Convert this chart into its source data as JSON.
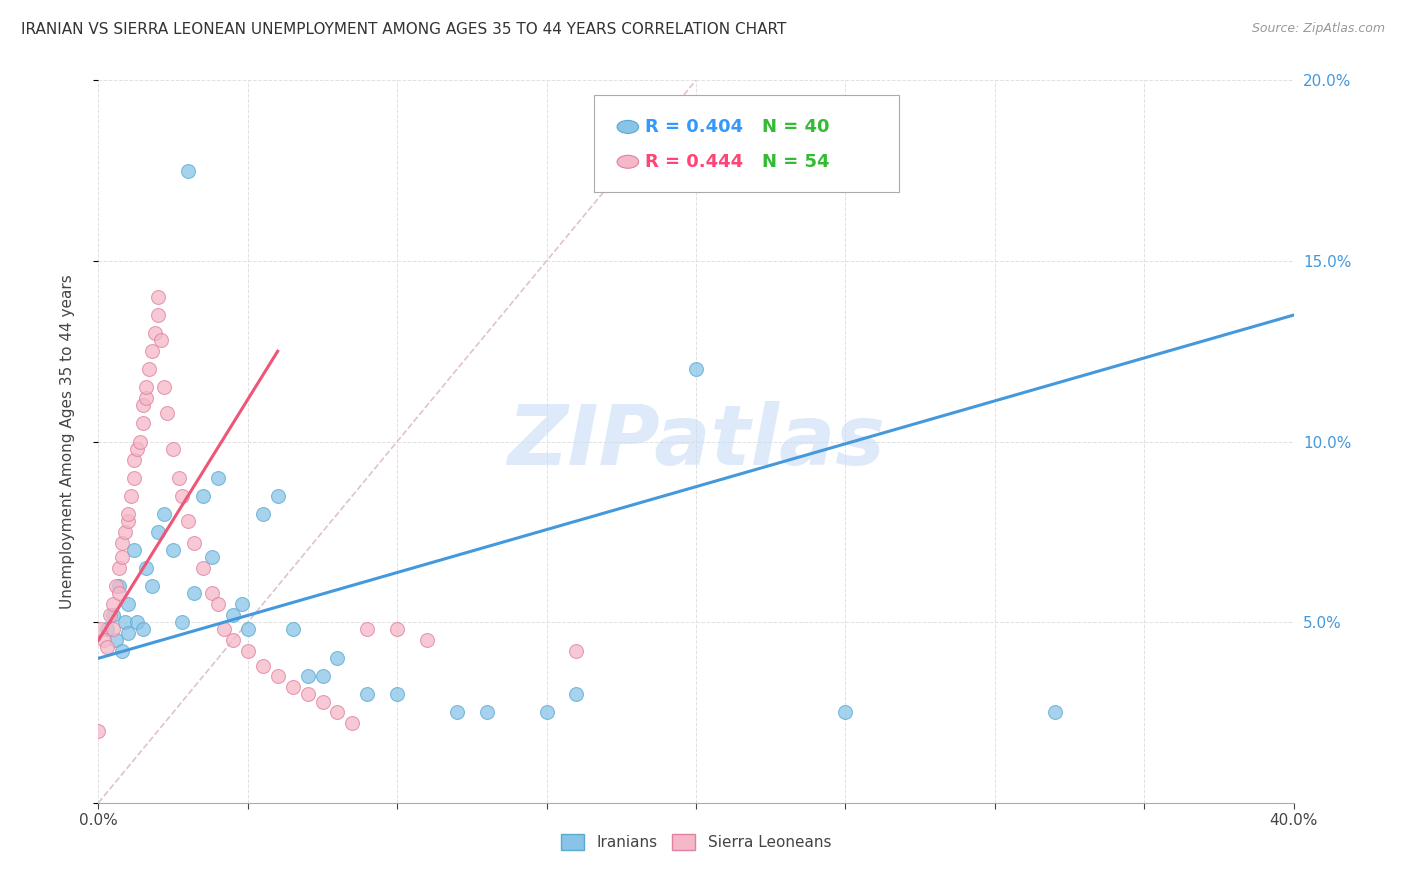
{
  "title": "IRANIAN VS SIERRA LEONEAN UNEMPLOYMENT AMONG AGES 35 TO 44 YEARS CORRELATION CHART",
  "source": "Source: ZipAtlas.com",
  "ylabel": "Unemployment Among Ages 35 to 44 years",
  "xlim": [
    0.0,
    0.4
  ],
  "ylim": [
    0.0,
    0.2
  ],
  "xtick_pos": [
    0.0,
    0.05,
    0.1,
    0.15,
    0.2,
    0.25,
    0.3,
    0.35,
    0.4
  ],
  "xtick_labels": [
    "0.0%",
    "",
    "",
    "",
    "",
    "",
    "",
    "",
    "40.0%"
  ],
  "ytick_pos": [
    0.0,
    0.05,
    0.1,
    0.15,
    0.2
  ],
  "ytick_labels_right": [
    "",
    "5.0%",
    "10.0%",
    "15.0%",
    "20.0%"
  ],
  "iranian_R": 0.404,
  "iranian_N": 40,
  "sierraleonean_R": 0.444,
  "sierraleonean_N": 54,
  "iranian_color": "#89c4e8",
  "iranian_edge": "#5aaad0",
  "sierraleonean_color": "#f5b8c8",
  "sierraleonean_edge": "#e080a0",
  "trendline_iranian_color": "#4499dd",
  "trendline_sierraleonean_color": "#ee5577",
  "diagonal_color": "#ddbbcc",
  "background_color": "#ffffff",
  "watermark_color": "#c8ddf5",
  "legend_R_iranian_color": "#3399ff",
  "legend_N_iranian_color": "#33bb33",
  "legend_R_sl_color": "#ff4477",
  "legend_N_sl_color": "#33bb33",
  "iranian_x": [
    0.003,
    0.005,
    0.006,
    0.007,
    0.008,
    0.009,
    0.01,
    0.01,
    0.012,
    0.013,
    0.015,
    0.016,
    0.018,
    0.02,
    0.022,
    0.025,
    0.028,
    0.03,
    0.032,
    0.035,
    0.038,
    0.04,
    0.045,
    0.048,
    0.05,
    0.055,
    0.06,
    0.065,
    0.07,
    0.075,
    0.08,
    0.09,
    0.1,
    0.12,
    0.13,
    0.15,
    0.16,
    0.2,
    0.25,
    0.32
  ],
  "iranian_y": [
    0.048,
    0.052,
    0.045,
    0.06,
    0.042,
    0.05,
    0.047,
    0.055,
    0.07,
    0.05,
    0.048,
    0.065,
    0.06,
    0.075,
    0.08,
    0.07,
    0.05,
    0.175,
    0.058,
    0.085,
    0.068,
    0.09,
    0.052,
    0.055,
    0.048,
    0.08,
    0.085,
    0.048,
    0.035,
    0.035,
    0.04,
    0.03,
    0.03,
    0.025,
    0.025,
    0.025,
    0.03,
    0.12,
    0.025,
    0.025
  ],
  "sl_x": [
    0.0,
    0.001,
    0.002,
    0.003,
    0.004,
    0.005,
    0.005,
    0.006,
    0.007,
    0.007,
    0.008,
    0.008,
    0.009,
    0.01,
    0.01,
    0.011,
    0.012,
    0.012,
    0.013,
    0.014,
    0.015,
    0.015,
    0.016,
    0.016,
    0.017,
    0.018,
    0.019,
    0.02,
    0.02,
    0.021,
    0.022,
    0.023,
    0.025,
    0.027,
    0.028,
    0.03,
    0.032,
    0.035,
    0.038,
    0.04,
    0.042,
    0.045,
    0.05,
    0.055,
    0.06,
    0.065,
    0.07,
    0.075,
    0.08,
    0.085,
    0.09,
    0.1,
    0.11,
    0.16
  ],
  "sl_y": [
    0.02,
    0.048,
    0.045,
    0.043,
    0.052,
    0.048,
    0.055,
    0.06,
    0.058,
    0.065,
    0.068,
    0.072,
    0.075,
    0.078,
    0.08,
    0.085,
    0.09,
    0.095,
    0.098,
    0.1,
    0.105,
    0.11,
    0.112,
    0.115,
    0.12,
    0.125,
    0.13,
    0.135,
    0.14,
    0.128,
    0.115,
    0.108,
    0.098,
    0.09,
    0.085,
    0.078,
    0.072,
    0.065,
    0.058,
    0.055,
    0.048,
    0.045,
    0.042,
    0.038,
    0.035,
    0.032,
    0.03,
    0.028,
    0.025,
    0.022,
    0.048,
    0.048,
    0.045,
    0.042
  ],
  "iran_trend_x0": 0.0,
  "iran_trend_y0": 0.04,
  "iran_trend_x1": 0.4,
  "iran_trend_y1": 0.135,
  "sl_trend_x0": 0.0,
  "sl_trend_y0": 0.045,
  "sl_trend_x1": 0.06,
  "sl_trend_y1": 0.125
}
